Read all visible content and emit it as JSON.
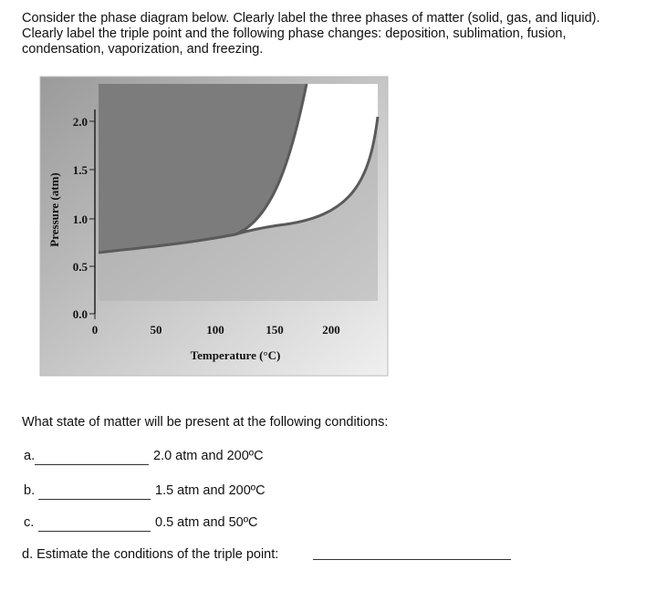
{
  "header": {
    "instructions": "Consider the phase diagram below. Clearly label the three phases of matter (solid, gas, and liquid). Clearly label the triple point and the following phase changes: deposition, sublimation, fusion, condensation, vaporization, and freezing."
  },
  "figure": {
    "y_label": "Pressure (atm)",
    "x_label": "Temperature (°C)",
    "yticks": [
      "2.0",
      "1.5",
      "1.0",
      "0.5",
      "0.0"
    ],
    "xticks": [
      "0",
      "50",
      "100",
      "150",
      "200"
    ]
  },
  "questions": {
    "prompt": "What state of matter will be present at the following conditions:",
    "items": [
      {
        "letter": "a.",
        "condition": "2.0 atm and 200ºC"
      },
      {
        "letter": "b.",
        "condition": "1.5 atm and 200ºC"
      },
      {
        "letter": "c.",
        "condition": "0.5 atm and 50ºC"
      }
    ],
    "triple_point": "d. Estimate the conditions of the triple point:"
  }
}
